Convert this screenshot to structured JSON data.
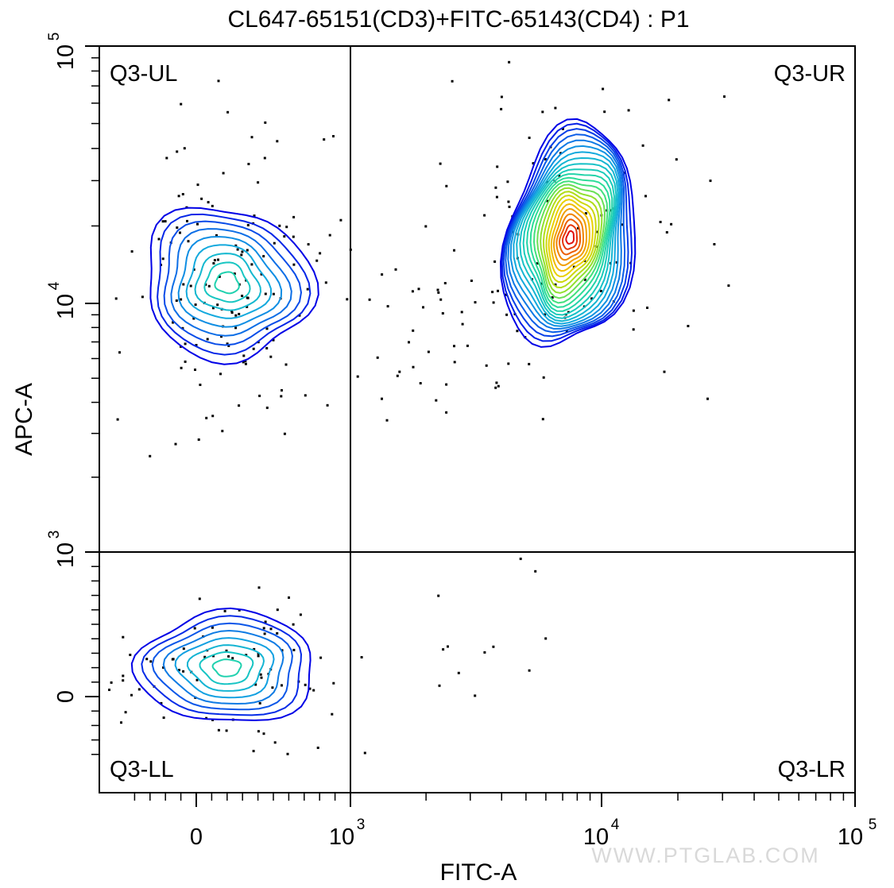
{
  "chart_data": {
    "type": "contour",
    "title": "CL647-65151(CD3)+FITC-65143(CD4) : P1",
    "xlabel": "FITC-A",
    "ylabel": "APC-A",
    "x_scale": "biexponential",
    "y_scale": "biexponential",
    "xlim": [
      -400,
      100000
    ],
    "ylim": [
      -400,
      100000
    ],
    "x_gate": 1000,
    "y_gate": 1000,
    "x_tick_labels": [
      "0",
      "10^3",
      "10^4",
      "10^5"
    ],
    "y_tick_labels": [
      "0",
      "10^3",
      "10^4",
      "10^5"
    ],
    "quadrants": [
      {
        "name": "Q3-UL",
        "position": "top-left"
      },
      {
        "name": "Q3-UR",
        "position": "top-right"
      },
      {
        "name": "Q3-LL",
        "position": "bottom-left"
      },
      {
        "name": "Q3-LR",
        "position": "bottom-right"
      }
    ],
    "populations": [
      {
        "quadrant": "Q3-UL",
        "center_fitc": 200,
        "center_apc": 12000,
        "contour_levels": 9,
        "peak_color": "#00e08a"
      },
      {
        "quadrant": "Q3-UR",
        "center_fitc": 7500,
        "center_apc": 18000,
        "contour_levels": 24,
        "peak_color": "#e01010"
      },
      {
        "quadrant": "Q3-LL",
        "center_fitc": 200,
        "center_apc": 200,
        "contour_levels": 8,
        "peak_color": "#00e08a"
      }
    ],
    "contour_color_scale": [
      "#0000e6",
      "#0a5ae8",
      "#12a6e0",
      "#18c8c0",
      "#30e090",
      "#a0e020",
      "#f0d000",
      "#f08000",
      "#e01010"
    ],
    "outlier_color": "#000000"
  },
  "watermark": "WWW.PTGLAB.COM"
}
